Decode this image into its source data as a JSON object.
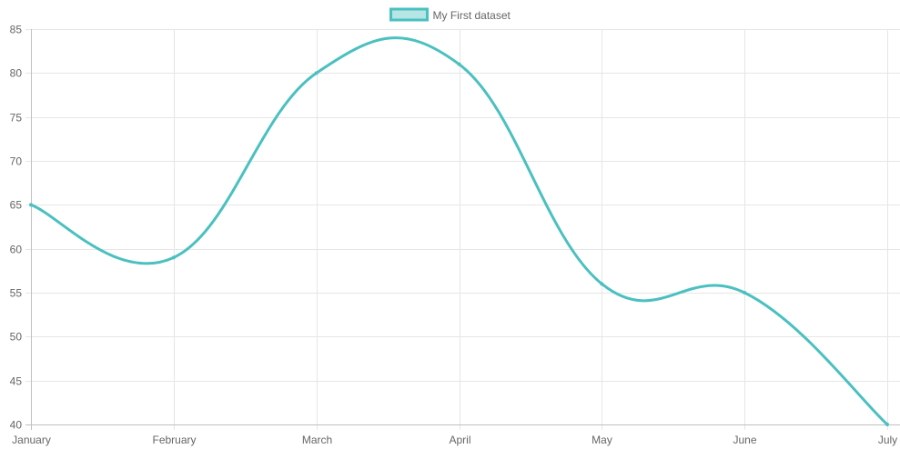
{
  "chart_data": {
    "type": "line",
    "categories": [
      "January",
      "February",
      "March",
      "April",
      "May",
      "June",
      "July"
    ],
    "series": [
      {
        "name": "My First dataset",
        "values": [
          65,
          59,
          80,
          81,
          56,
          55,
          40
        ],
        "color": "#4bc0c0",
        "fill": "#b5e5e5"
      }
    ],
    "title": "",
    "xlabel": "",
    "ylabel": "",
    "ylim": [
      40,
      85
    ],
    "yticks": [
      40,
      45,
      50,
      55,
      60,
      65,
      70,
      75,
      80,
      85
    ],
    "grid": true,
    "legend_position": "top",
    "curve": "smooth"
  },
  "colors": {
    "grid": "#e6e6e6",
    "axis": "#c0c0c0",
    "tick_text": "#666666"
  }
}
